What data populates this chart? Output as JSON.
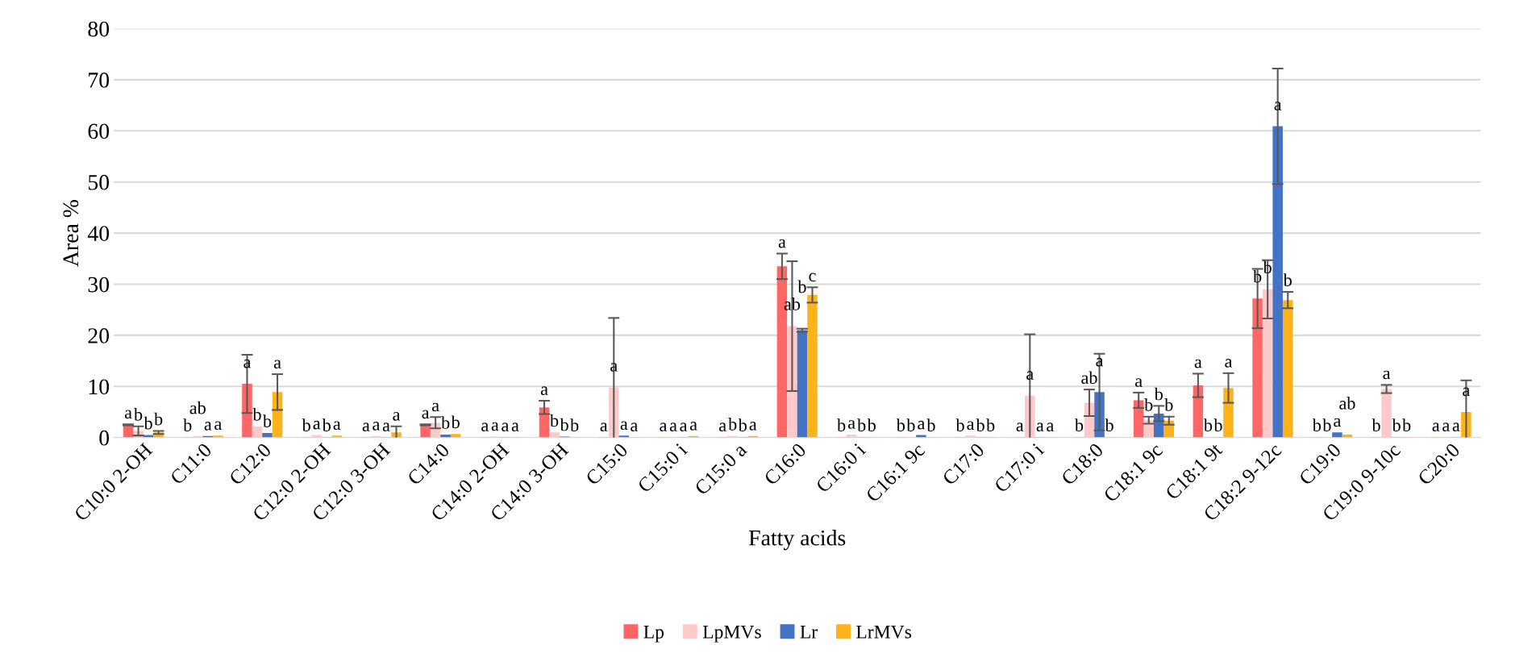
{
  "chart_data": {
    "type": "bar",
    "xlabel": "Fatty acids",
    "ylabel": "Area %",
    "categories": [
      "C10:0 2-OH",
      "C11:0",
      "C12:0",
      "C12:0 2-OH",
      "C12:0 3-OH",
      "C14:0",
      "C14:0 2-OH",
      "C14:0 3-OH",
      "C15:0",
      "C15:0 i",
      "C15:0 a",
      "C16:0",
      "C16:0 i",
      "C16:1 9c",
      "C17:0",
      "C17:0 i",
      "C18:0",
      "C18:1 9c",
      "C18:1 9t",
      "C18:2 9-12c",
      "C19:0",
      "C19:0 9-10c",
      "C20:0"
    ],
    "series": [
      {
        "name": "Lp",
        "color": "#ff6666",
        "values": [
          2.5,
          0.1,
          10.5,
          0.1,
          0.1,
          2.5,
          0.1,
          5.9,
          0.1,
          0.1,
          0.1,
          33.5,
          0.1,
          0.1,
          0.1,
          0.1,
          0.1,
          7.3,
          10.2,
          27.2,
          0.1,
          0.1,
          0.1
        ],
        "errors": [
          0.1,
          null,
          5.7,
          null,
          null,
          0.1,
          null,
          1.3,
          null,
          null,
          null,
          2.5,
          null,
          null,
          null,
          null,
          null,
          1.5,
          2.3,
          5.8,
          null,
          null,
          null
        ],
        "value_labels": [
          "a",
          "b",
          "a",
          "b",
          "a",
          "a",
          "a",
          "a",
          "a",
          "a",
          "a",
          "a",
          "b",
          "b",
          "b",
          "a",
          "b",
          "a",
          "a",
          "b",
          "b",
          "b",
          "a"
        ]
      },
      {
        "name": "LpMVs",
        "color": "#ffc9c9",
        "values": [
          1.3,
          0.3,
          2.2,
          0.5,
          0.3,
          2.9,
          0.2,
          1.0,
          9.8,
          0.1,
          0.3,
          21.8,
          0.6,
          0.1,
          0.4,
          8.2,
          6.8,
          3.4,
          0.1,
          29.0,
          0.1,
          9.5,
          0.1
        ],
        "errors": [
          0.9,
          null,
          null,
          null,
          null,
          1.1,
          null,
          null,
          13.6,
          null,
          null,
          12.7,
          null,
          null,
          null,
          12.0,
          2.6,
          0.7,
          null,
          5.7,
          null,
          0.8,
          null
        ],
        "value_labels": [
          "b",
          "ab",
          "b",
          "a",
          "a",
          "a",
          "a",
          "b",
          "a",
          "a",
          "b",
          "ab",
          "a",
          "b",
          "a",
          "a",
          "ab",
          "b",
          "b",
          "b",
          "b",
          "a",
          "a"
        ]
      },
      {
        "name": "Lr",
        "color": "#4472c4",
        "values": [
          0.5,
          0.3,
          0.9,
          0.1,
          0.1,
          0.6,
          0.1,
          0.2,
          0.4,
          0.1,
          0.1,
          21.0,
          0.1,
          0.5,
          0.1,
          0.1,
          8.9,
          4.7,
          0.1,
          60.9,
          1.0,
          0.1,
          0.1
        ],
        "errors": [
          null,
          null,
          null,
          null,
          null,
          null,
          null,
          null,
          null,
          null,
          null,
          0.3,
          null,
          null,
          null,
          null,
          7.5,
          1.5,
          null,
          11.3,
          null,
          null,
          null
        ],
        "value_labels": [
          "b",
          "a",
          "b",
          "b",
          "a",
          "b",
          "a",
          "b",
          "a",
          "a",
          "b",
          "b",
          "b",
          "a",
          "b",
          "a",
          "a",
          "b",
          "b",
          "a",
          "a",
          "b",
          "a"
        ]
      },
      {
        "name": "LrMVs",
        "color": "#ffb31a",
        "values": [
          1.0,
          0.4,
          8.9,
          0.4,
          1.0,
          0.7,
          0.1,
          0.1,
          0.1,
          0.3,
          0.3,
          27.9,
          0.1,
          0.1,
          0.1,
          0.1,
          0.1,
          3.3,
          9.7,
          26.9,
          0.6,
          0.1,
          5.0
        ],
        "errors": [
          0.3,
          null,
          3.5,
          null,
          1.2,
          null,
          null,
          null,
          null,
          null,
          null,
          1.5,
          null,
          null,
          null,
          null,
          null,
          0.8,
          2.9,
          1.6,
          null,
          null,
          6.2
        ],
        "value_labels": [
          "b",
          "a",
          "a",
          "a",
          "a",
          "b",
          "a",
          "b",
          "a",
          "a",
          "a",
          "c",
          "b",
          "b",
          "b",
          "a",
          "b",
          "b",
          "a",
          "b",
          "ab",
          "b",
          "a"
        ]
      }
    ],
    "ylim": [
      0,
      80
    ],
    "yticks": [
      0,
      10,
      20,
      30,
      40,
      50,
      60,
      70,
      80
    ],
    "grid": "y",
    "legend": "bottom"
  }
}
